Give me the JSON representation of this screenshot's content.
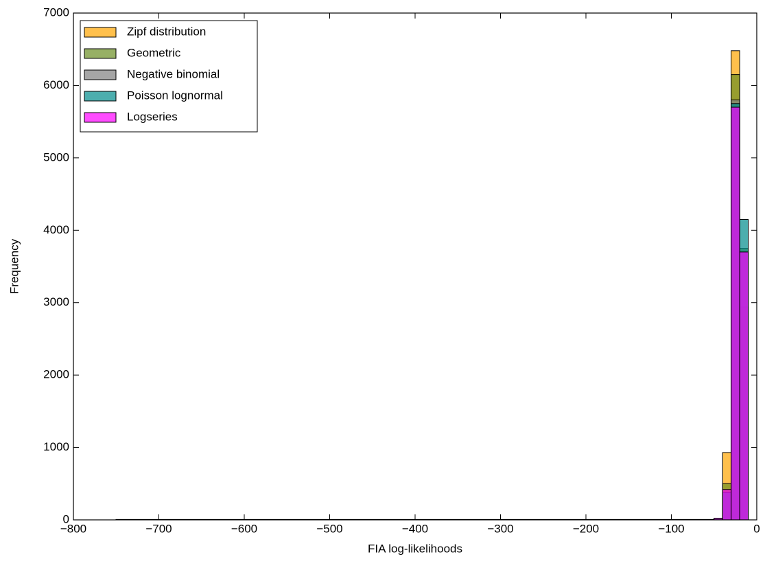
{
  "chart_data": {
    "type": "histogram",
    "xlabel": "FIA log-likelihoods",
    "ylabel": "Frequency",
    "bins": [
      -750,
      -50,
      -40,
      -30,
      -20,
      -10
    ],
    "series": [
      {
        "name": "Zipf distribution",
        "color": "#ffa500",
        "values": [
          5,
          20,
          930,
          6480,
          2940
        ]
      },
      {
        "name": "Geometric",
        "color": "#6b8e23",
        "values": [
          5,
          20,
          500,
          6150,
          3750
        ]
      },
      {
        "name": "Negative binomial",
        "color": "#808080",
        "values": [
          5,
          20,
          380,
          5800,
          3700
        ]
      },
      {
        "name": "Poisson lognormal",
        "color": "#008b8b",
        "values": [
          5,
          20,
          380,
          5750,
          4150
        ]
      },
      {
        "name": "Logseries",
        "color": "#ff00ff",
        "values": [
          5,
          20,
          420,
          5700,
          3700
        ]
      }
    ],
    "xlim": [
      -800,
      0
    ],
    "xticks": [
      {
        "value": -800,
        "label": "−800"
      },
      {
        "value": -700,
        "label": "−700"
      },
      {
        "value": -600,
        "label": "−600"
      },
      {
        "value": -500,
        "label": "−500"
      },
      {
        "value": -400,
        "label": "−400"
      },
      {
        "value": -300,
        "label": "−300"
      },
      {
        "value": -200,
        "label": "−200"
      },
      {
        "value": -100,
        "label": "−100"
      },
      0
    ],
    "ylim": [
      0,
      7000
    ],
    "yticks": [
      0,
      1000,
      2000,
      3000,
      4000,
      5000,
      6000,
      7000
    ],
    "legend": "upper left",
    "opacity": 0.7
  }
}
